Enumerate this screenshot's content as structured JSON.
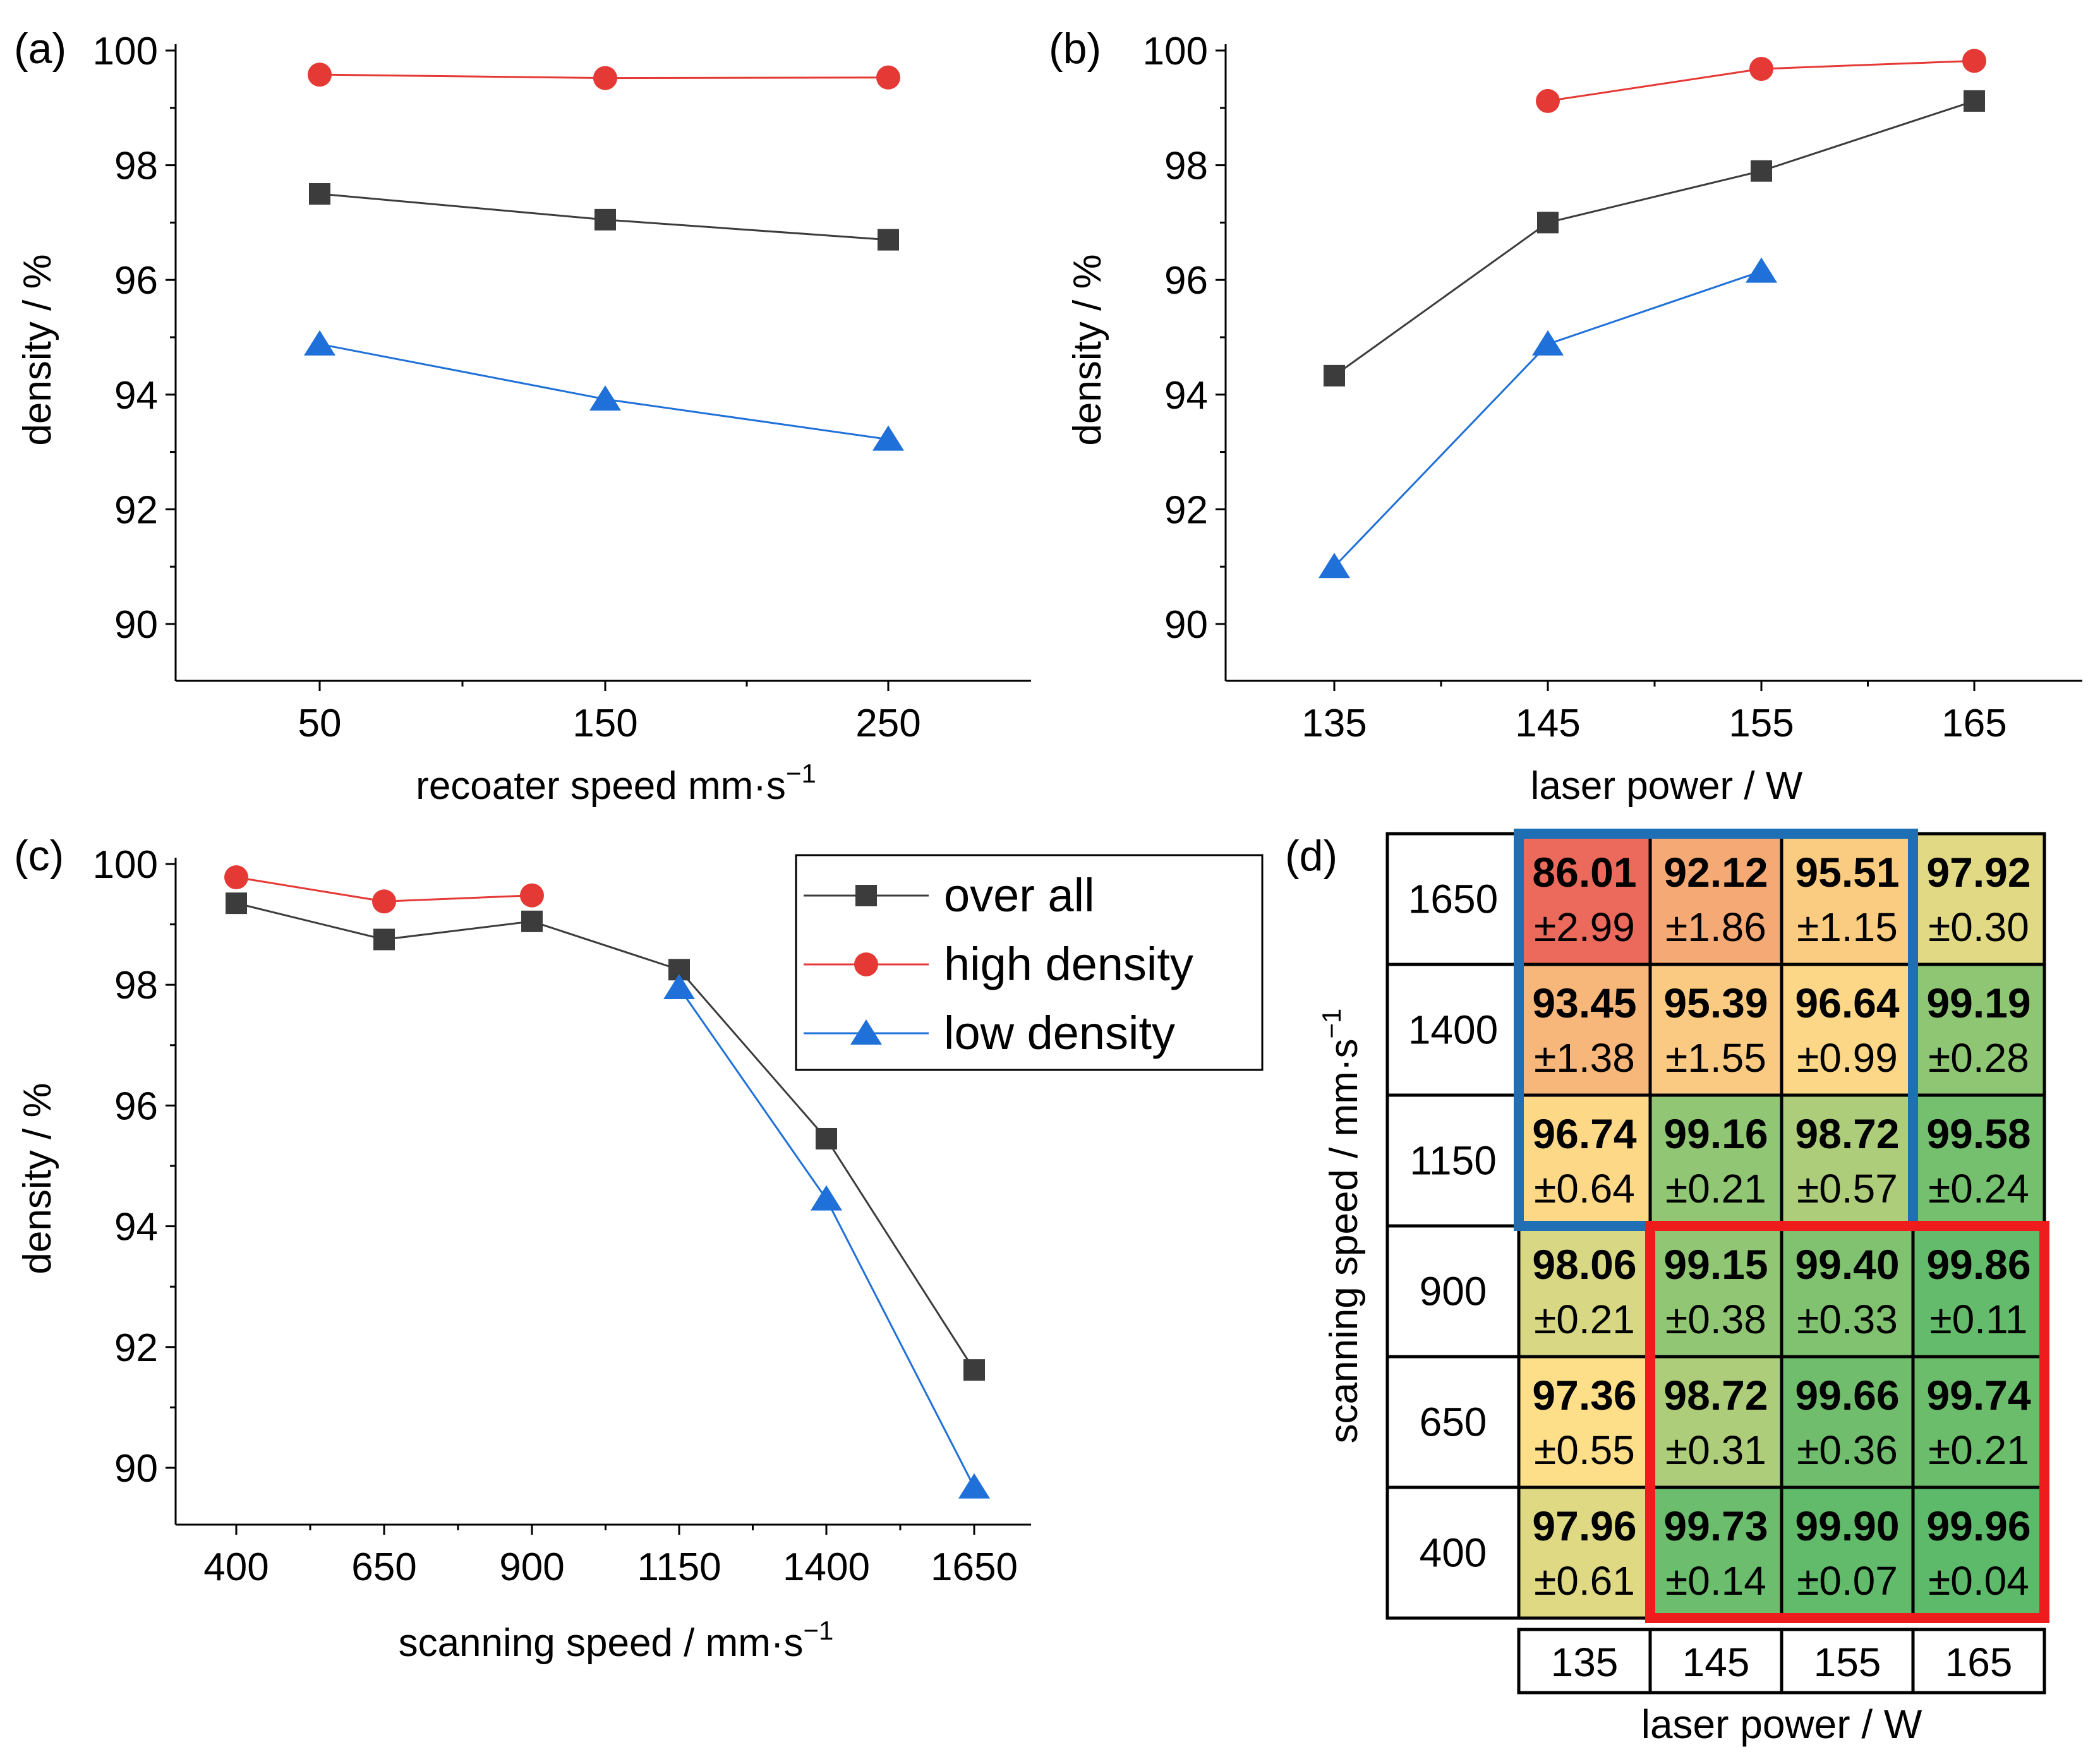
{
  "chart_data": [
    {
      "panel": "(a)",
      "type": "line",
      "xlabel": "recoater speed mm·s",
      "xlabel_sup": "−1",
      "ylabel": "density / %",
      "categories": [
        "50",
        "150",
        "250"
      ],
      "ylim": [
        89,
        100
      ],
      "yticks": [
        "90",
        "92",
        "94",
        "96",
        "98",
        "100"
      ],
      "series": [
        {
          "key": "overall",
          "values": [
            97.5,
            97.05,
            96.7
          ]
        },
        {
          "key": "high",
          "values": [
            99.58,
            99.52,
            99.53
          ]
        },
        {
          "key": "low",
          "values": [
            94.88,
            93.92,
            93.22
          ]
        }
      ]
    },
    {
      "panel": "(b)",
      "type": "line",
      "xlabel": "laser power / W",
      "ylabel": "density / %",
      "categories": [
        "135",
        "145",
        "155",
        "165"
      ],
      "ylim": [
        89,
        100
      ],
      "yticks": [
        "90",
        "92",
        "94",
        "96",
        "98",
        "100"
      ],
      "series": [
        {
          "key": "overall",
          "values": [
            94.33,
            97.0,
            97.9,
            99.12
          ]
        },
        {
          "key": "high",
          "values": [
            null,
            99.12,
            99.68,
            99.82
          ]
        },
        {
          "key": "low",
          "values": [
            91.0,
            94.88,
            96.15,
            null
          ]
        }
      ]
    },
    {
      "panel": "(c)",
      "type": "line",
      "xlabel": "scanning speed / mm·s",
      "xlabel_sup": "−1",
      "ylabel": "density / %",
      "categories": [
        "400",
        "650",
        "900",
        "1150",
        "1400",
        "1650"
      ],
      "ylim": [
        89,
        100
      ],
      "yticks": [
        "90",
        "92",
        "94",
        "96",
        "98",
        "100"
      ],
      "legend_position": "top-right",
      "series": [
        {
          "key": "overall",
          "name": "over all",
          "values": [
            99.35,
            98.75,
            99.05,
            98.25,
            95.45,
            91.62
          ]
        },
        {
          "key": "high",
          "name": "high density",
          "values": [
            99.78,
            99.38,
            99.48,
            null,
            null,
            null
          ]
        },
        {
          "key": "low",
          "name": "low density",
          "values": [
            null,
            null,
            null,
            97.95,
            94.45,
            89.68
          ]
        }
      ]
    },
    {
      "panel": "(d)",
      "type": "heatmap",
      "xlabel": "laser power / W",
      "ylabel": "scanning speed / mm·s",
      "ylabel_sup": "−1",
      "x": [
        "135",
        "145",
        "155",
        "165"
      ],
      "y": [
        "1650",
        "1400",
        "1150",
        "900",
        "650",
        "400"
      ],
      "values": [
        [
          {
            "v": "86.01",
            "e": "±2.99"
          },
          {
            "v": "92.12",
            "e": "±1.86"
          },
          {
            "v": "95.51",
            "e": "±1.15"
          },
          {
            "v": "97.92",
            "e": "±0.30"
          }
        ],
        [
          {
            "v": "93.45",
            "e": "±1.38"
          },
          {
            "v": "95.39",
            "e": "±1.55"
          },
          {
            "v": "96.64",
            "e": "±0.99"
          },
          {
            "v": "99.19",
            "e": "±0.28"
          }
        ],
        [
          {
            "v": "96.74",
            "e": "±0.64"
          },
          {
            "v": "99.16",
            "e": "±0.21"
          },
          {
            "v": "98.72",
            "e": "±0.57"
          },
          {
            "v": "99.58",
            "e": "±0.24"
          }
        ],
        [
          {
            "v": "98.06",
            "e": "±0.21"
          },
          {
            "v": "99.15",
            "e": "±0.38"
          },
          {
            "v": "99.40",
            "e": "±0.33"
          },
          {
            "v": "99.86",
            "e": "±0.11"
          }
        ],
        [
          {
            "v": "97.36",
            "e": "±0.55"
          },
          {
            "v": "98.72",
            "e": "±0.31"
          },
          {
            "v": "99.66",
            "e": "±0.36"
          },
          {
            "v": "99.74",
            "e": "±0.21"
          }
        ],
        [
          {
            "v": "97.96",
            "e": "±0.61"
          },
          {
            "v": "99.73",
            "e": "±0.14"
          },
          {
            "v": "99.90",
            "e": "±0.07"
          },
          {
            "v": "99.96",
            "e": "±0.04"
          }
        ]
      ],
      "colorscale": {
        "low": "#ec6a5c",
        "mid": "#fde08a",
        "high": "#5ab969",
        "range": [
          86,
          100
        ]
      },
      "highlights": [
        {
          "color": "#1f6fb5",
          "rows": [
            0,
            2
          ],
          "cols": [
            0,
            2
          ]
        },
        {
          "color": "#ee1c1c",
          "rows": [
            3,
            5
          ],
          "cols": [
            1,
            3
          ]
        }
      ]
    }
  ],
  "series_styles": {
    "overall": {
      "color": "#3c3c3c",
      "marker": "square"
    },
    "high": {
      "color": "#e53935",
      "marker": "circle"
    },
    "low": {
      "color": "#1f70d8",
      "marker": "triangle"
    }
  }
}
